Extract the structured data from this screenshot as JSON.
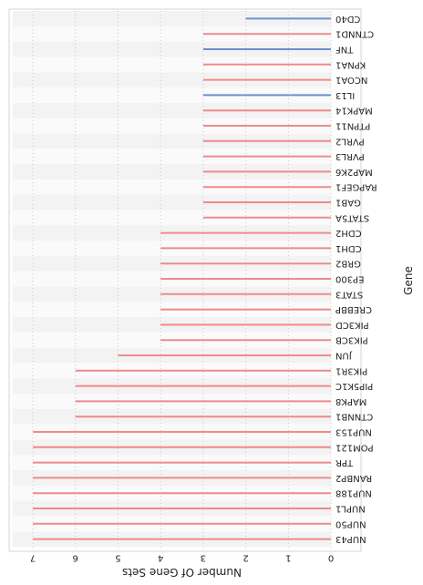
{
  "chart_data": {
    "type": "bar",
    "orientation": "horizontal",
    "categories": [
      "NUP43",
      "NUP50",
      "NUPL1",
      "NUP188",
      "RANBP2",
      "TPR",
      "POM121",
      "NUP153",
      "CTNNB1",
      "MAPK8",
      "PIP5K1C",
      "PIK3R1",
      "JUN",
      "PIK3CB",
      "PIK3CD",
      "CREBBP",
      "STAT3",
      "EP300",
      "GRB2",
      "CDH1",
      "CDH2",
      "STAT5A",
      "GAB1",
      "RAPGEF1",
      "MAP2K6",
      "PVRL3",
      "PVRL2",
      "PTPN11",
      "MAPK14",
      "IL13",
      "NCOA1",
      "KPNA1",
      "TNF",
      "CTNND1",
      "CD40"
    ],
    "values": [
      7,
      7,
      7,
      7,
      7,
      7,
      7,
      7,
      6,
      6,
      6,
      6,
      5,
      4,
      4,
      4,
      4,
      4,
      4,
      4,
      4,
      3,
      3,
      3,
      3,
      3,
      3,
      3,
      3,
      3,
      3,
      3,
      3,
      3,
      2
    ],
    "colors": [
      "#f08a8a",
      "#f08a8a",
      "#f08a8a",
      "#f08a8a",
      "#f08a8a",
      "#f08a8a",
      "#f08a8a",
      "#f08a8a",
      "#f08a8a",
      "#f08a8a",
      "#f08a8a",
      "#f08a8a",
      "#f08a8a",
      "#f08a8a",
      "#f08a8a",
      "#f08a8a",
      "#f08a8a",
      "#f08a8a",
      "#f08a8a",
      "#f08a8a",
      "#f08a8a",
      "#f08a8a",
      "#f08a8a",
      "#f08a8a",
      "#f08a8a",
      "#f08a8a",
      "#f08a8a",
      "#f08a8a",
      "#f08a8a",
      "#6b8fd4",
      "#f08a8a",
      "#f08a8a",
      "#6b8fd4",
      "#f08a8a",
      "#6b8fd4"
    ],
    "xlabel": "Number Of Gene Sets",
    "ylabel": "Gene",
    "ticks": [
      0,
      1,
      2,
      3,
      4,
      5,
      6,
      7
    ],
    "xlim": [
      0,
      7.3
    ],
    "grid": true,
    "legend": "none",
    "rendering": "rotated-180"
  }
}
